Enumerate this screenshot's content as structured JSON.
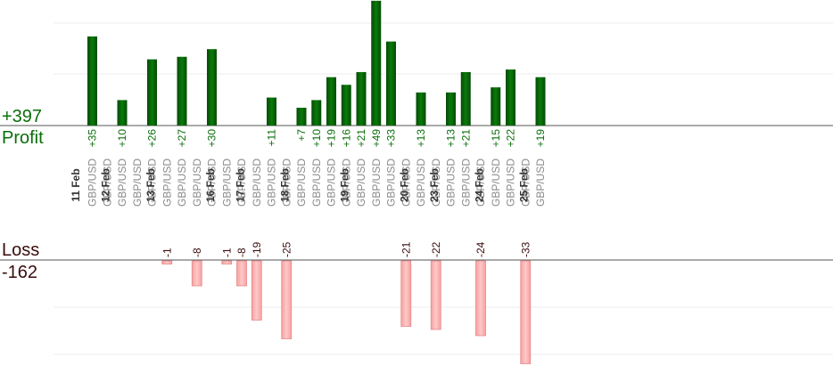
{
  "summary": {
    "profit_total": "+397",
    "profit_label": "Profit",
    "loss_label": "Loss",
    "loss_total": "-162"
  },
  "colors": {
    "profit_bar": "#0a6e0a",
    "profit_bar_dark": "#054b05",
    "loss_bar": "#ffb6b6",
    "loss_bar_edge": "#e88a8a",
    "profit_text": "#0a6e0a",
    "loss_text": "#3a0c0c",
    "date_text": "#333333",
    "pair_text": "#8a8a8a"
  },
  "chart_data": {
    "type": "bar",
    "grid": true,
    "profit_ylim": [
      0,
      40
    ],
    "loss_ylim": [
      -35,
      0
    ],
    "days": [
      {
        "date": "11 Feb",
        "trades": [
          {
            "pair": "GBP/USD",
            "pnl": 35
          },
          {
            "pair": "GBP/USD",
            "pnl": 0
          }
        ]
      },
      {
        "date": "12 Feb",
        "trades": [
          {
            "pair": "GBP/USD",
            "pnl": 10
          },
          {
            "pair": "GBP/USD",
            "pnl": 0
          },
          {
            "pair": "GBP/USD",
            "pnl": 26
          }
        ]
      },
      {
        "date": "13 Feb",
        "trades": [
          {
            "pair": "GBP/USD",
            "pnl": -1
          },
          {
            "pair": "GBP/USD",
            "pnl": 27
          },
          {
            "pair": "GBP/USD",
            "pnl": -8
          },
          {
            "pair": "GBP/USD",
            "pnl": 30
          }
        ]
      },
      {
        "date": "16 Feb",
        "trades": [
          {
            "pair": "GBP/USD",
            "pnl": -1
          },
          {
            "pair": "GBP/USD",
            "pnl": -8
          }
        ]
      },
      {
        "date": "17 Feb",
        "trades": [
          {
            "pair": "GBP/USD",
            "pnl": -19
          },
          {
            "pair": "GBP/USD",
            "pnl": 11
          },
          {
            "pair": "GBP/USD",
            "pnl": -25
          }
        ]
      },
      {
        "date": "18 Feb",
        "trades": [
          {
            "pair": "GBP/USD",
            "pnl": 7
          },
          {
            "pair": "GBP/USD",
            "pnl": 10
          },
          {
            "pair": "GBP/USD",
            "pnl": 19
          },
          {
            "pair": "GBP/USD",
            "pnl": 16
          }
        ]
      },
      {
        "date": "19 Feb",
        "trades": [
          {
            "pair": "GBP/USD",
            "pnl": 21
          },
          {
            "pair": "GBP/USD",
            "pnl": 49
          },
          {
            "pair": "GBP/USD",
            "pnl": 33
          },
          {
            "pair": "GBP/USD",
            "pnl": -21
          }
        ]
      },
      {
        "date": "20 Feb",
        "trades": [
          {
            "pair": "GBP/USD",
            "pnl": 13
          },
          {
            "pair": "GBP/USD",
            "pnl": -22
          }
        ]
      },
      {
        "date": "23 Feb",
        "trades": [
          {
            "pair": "GBP/USD",
            "pnl": 13
          },
          {
            "pair": "GBP/USD",
            "pnl": 21
          },
          {
            "pair": "GBP/USD",
            "pnl": -24
          }
        ]
      },
      {
        "date": "24 Feb",
        "trades": [
          {
            "pair": "GBP/USD",
            "pnl": 15
          },
          {
            "pair": "GBP/USD",
            "pnl": 22
          },
          {
            "pair": "GBP/USD",
            "pnl": -33
          }
        ]
      },
      {
        "date": "25 Feb",
        "trades": [
          {
            "pair": "GBP/USD",
            "pnl": 19
          }
        ]
      }
    ]
  }
}
